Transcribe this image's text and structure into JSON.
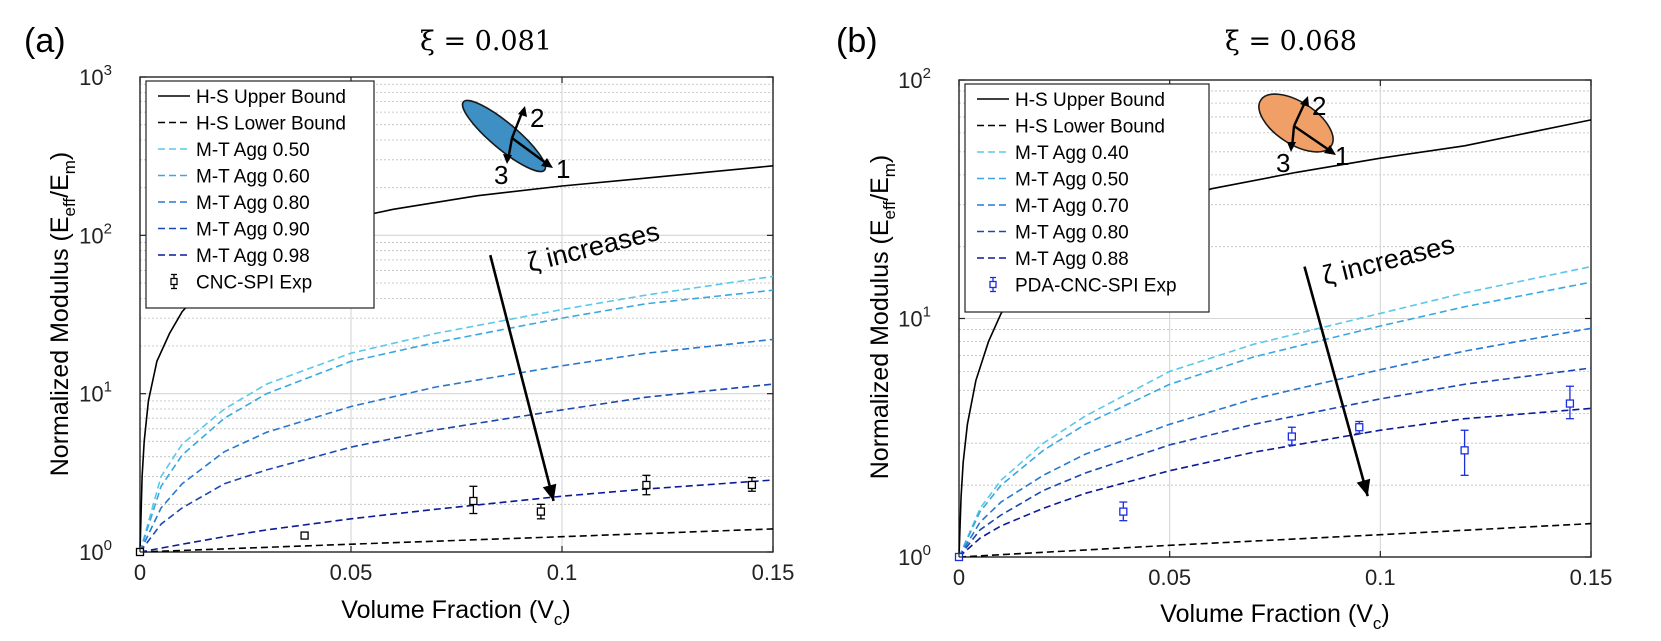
{
  "chart_data": [
    {
      "type": "line",
      "panel_label": "(a)",
      "title": "ξ = 0.081",
      "xlabel": "Volume Fraction (V",
      "xlabel_sub": "c",
      "xlabel_end": ")",
      "ylabel_main": "Normalized Modulus (E",
      "ylabel_sub1": "eff",
      "ylabel_slash": "/E",
      "ylabel_sub2": "m",
      "ylabel_end": ")",
      "xlim": [
        0,
        0.15
      ],
      "ylim": [
        1,
        1000
      ],
      "yscale": "log",
      "grid": true,
      "xticks": [
        0,
        0.05,
        0.1,
        0.15
      ],
      "xtick_labels": [
        "0",
        "0.05",
        "0.1",
        "0.15"
      ],
      "yticks": [
        {
          "value": 1,
          "base": "10",
          "exp": "0"
        },
        {
          "value": 10,
          "base": "10",
          "exp": "1"
        },
        {
          "value": 100,
          "base": "10",
          "exp": "2"
        },
        {
          "value": 1000,
          "base": "10",
          "exp": "3"
        }
      ],
      "legend": [
        {
          "label": "H-S Upper Bound",
          "style": "solid",
          "color": "#000000"
        },
        {
          "label": "H-S Lower Bound",
          "style": "dashed",
          "color": "#000000"
        },
        {
          "label": "M-T Agg 0.50",
          "style": "dashed",
          "color": "#5ac8e8"
        },
        {
          "label": "M-T Agg 0.60",
          "style": "dashed",
          "color": "#3aa8e0"
        },
        {
          "label": "M-T Agg 0.80",
          "style": "dashed",
          "color": "#2878d0"
        },
        {
          "label": "M-T Agg 0.90",
          "style": "dashed",
          "color": "#1a48b0"
        },
        {
          "label": "M-T Agg 0.98",
          "style": "dashed",
          "color": "#0a1a98"
        },
        {
          "label": "CNC-SPI Exp",
          "style": "errorbar",
          "color": "#000000"
        }
      ],
      "series": [
        {
          "name": "H-S Upper Bound",
          "style": "solid",
          "color": "#000000",
          "x": [
            0,
            0.0005,
            0.001,
            0.002,
            0.004,
            0.007,
            0.01,
            0.015,
            0.02,
            0.03,
            0.04,
            0.05,
            0.06,
            0.08,
            0.1,
            0.12,
            0.15
          ],
          "y": [
            1,
            3,
            5,
            9,
            16,
            24,
            33,
            46,
            60,
            85,
            107,
            128,
            146,
            178,
            205,
            230,
            275
          ]
        },
        {
          "name": "H-S Lower Bound",
          "style": "dashed",
          "color": "#000000",
          "x": [
            0,
            0.05,
            0.1,
            0.15
          ],
          "y": [
            1,
            1.12,
            1.25,
            1.4
          ]
        },
        {
          "name": "M-T Agg 0.50",
          "style": "dashed",
          "color": "#5ac8e8",
          "x": [
            0,
            0.005,
            0.01,
            0.02,
            0.03,
            0.05,
            0.07,
            0.1,
            0.12,
            0.15
          ],
          "y": [
            1,
            3,
            4.8,
            8,
            11.5,
            18,
            24,
            34,
            42,
            55
          ]
        },
        {
          "name": "M-T Agg 0.60",
          "style": "dashed",
          "color": "#3aa8e0",
          "x": [
            0,
            0.005,
            0.01,
            0.02,
            0.03,
            0.05,
            0.07,
            0.1,
            0.12,
            0.15
          ],
          "y": [
            1,
            2.6,
            4.1,
            7,
            10,
            16,
            21,
            30,
            37,
            45
          ]
        },
        {
          "name": "M-T Agg 0.80",
          "style": "dashed",
          "color": "#2878d0",
          "x": [
            0,
            0.005,
            0.01,
            0.02,
            0.03,
            0.05,
            0.07,
            0.1,
            0.12,
            0.15
          ],
          "y": [
            1,
            1.9,
            2.7,
            4.3,
            5.7,
            8.3,
            11,
            15,
            18,
            22
          ]
        },
        {
          "name": "M-T Agg 0.90",
          "style": "dashed",
          "color": "#1a48b0",
          "x": [
            0,
            0.005,
            0.01,
            0.02,
            0.03,
            0.05,
            0.07,
            0.1,
            0.12,
            0.15
          ],
          "y": [
            1,
            1.5,
            1.9,
            2.7,
            3.3,
            4.6,
            5.9,
            7.9,
            9.5,
            11.5
          ]
        },
        {
          "name": "M-T Agg 0.98",
          "style": "dashed",
          "color": "#0a1a98",
          "x": [
            0,
            0.01,
            0.02,
            0.03,
            0.05,
            0.07,
            0.1,
            0.12,
            0.15
          ],
          "y": [
            1,
            1.12,
            1.25,
            1.38,
            1.62,
            1.86,
            2.25,
            2.5,
            2.85
          ]
        }
      ],
      "experimental": {
        "name": "CNC-SPI Exp",
        "color": "#000000",
        "points": [
          {
            "x": 0,
            "y": 1.0,
            "lo": 0.98,
            "hi": 1.02
          },
          {
            "x": 0.039,
            "y": 1.27,
            "lo": 1.23,
            "hi": 1.31
          },
          {
            "x": 0.079,
            "y": 2.1,
            "lo": 1.75,
            "hi": 2.6
          },
          {
            "x": 0.095,
            "y": 1.8,
            "lo": 1.62,
            "hi": 2.0
          },
          {
            "x": 0.12,
            "y": 2.65,
            "lo": 2.3,
            "hi": 3.05
          },
          {
            "x": 0.145,
            "y": 2.65,
            "lo": 2.42,
            "hi": 2.95
          }
        ]
      },
      "annotation": {
        "text": "ζ increases",
        "arrow_from": {
          "x": 0.083,
          "y": 75
        },
        "arrow_to": {
          "x": 0.098,
          "y": 2.1
        }
      },
      "inset": {
        "color": "#3d8fc4",
        "labels": [
          "1",
          "2",
          "3"
        ]
      }
    },
    {
      "type": "line",
      "panel_label": "(b)",
      "title": "ξ = 0.068",
      "xlabel": "Volume Fraction (V",
      "xlabel_sub": "c",
      "xlabel_end": ")",
      "ylabel_main": "Normalized Modulus (E",
      "ylabel_sub1": "eff",
      "ylabel_slash": "/E",
      "ylabel_sub2": "m",
      "ylabel_end": ")",
      "xlim": [
        0,
        0.15
      ],
      "ylim": [
        1,
        100
      ],
      "yscale": "log",
      "grid": true,
      "xticks": [
        0,
        0.05,
        0.1,
        0.15
      ],
      "xtick_labels": [
        "0",
        "0.05",
        "0.1",
        "0.15"
      ],
      "yticks": [
        {
          "value": 1,
          "base": "10",
          "exp": "0"
        },
        {
          "value": 10,
          "base": "10",
          "exp": "1"
        },
        {
          "value": 100,
          "base": "10",
          "exp": "2"
        }
      ],
      "legend": [
        {
          "label": "H-S Upper Bound",
          "style": "solid",
          "color": "#000000"
        },
        {
          "label": "H-S Lower Bound",
          "style": "dashed",
          "color": "#000000"
        },
        {
          "label": "M-T Agg 0.40",
          "style": "dashed",
          "color": "#5ac8e8"
        },
        {
          "label": "M-T Agg 0.50",
          "style": "dashed",
          "color": "#3aa8e0"
        },
        {
          "label": "M-T Agg 0.70",
          "style": "dashed",
          "color": "#2878d0"
        },
        {
          "label": "M-T Agg 0.80",
          "style": "dashed",
          "color": "#1a48b0"
        },
        {
          "label": "M-T Agg 0.88",
          "style": "dashed",
          "color": "#0a1a98"
        },
        {
          "label": "PDA-CNC-SPI Exp",
          "style": "errorbar",
          "color": "#1a2ee0"
        }
      ],
      "series": [
        {
          "name": "H-S Upper Bound",
          "style": "solid",
          "color": "#000000",
          "x": [
            0,
            0.0005,
            0.001,
            0.002,
            0.004,
            0.007,
            0.01,
            0.015,
            0.02,
            0.03,
            0.04,
            0.05,
            0.06,
            0.08,
            0.1,
            0.12,
            0.15
          ],
          "y": [
            1,
            1.8,
            2.5,
            3.6,
            5.5,
            8,
            10.5,
            14,
            17,
            22.5,
            27,
            31,
            35,
            41,
            47,
            53,
            68
          ]
        },
        {
          "name": "H-S Lower Bound",
          "style": "dashed",
          "color": "#000000",
          "x": [
            0,
            0.05,
            0.1,
            0.15
          ],
          "y": [
            1,
            1.12,
            1.24,
            1.38
          ]
        },
        {
          "name": "M-T Agg 0.40",
          "style": "dashed",
          "color": "#5ac8e8",
          "x": [
            0,
            0.005,
            0.01,
            0.02,
            0.03,
            0.05,
            0.07,
            0.1,
            0.12,
            0.15
          ],
          "y": [
            1,
            1.6,
            2.1,
            3.0,
            3.9,
            6.0,
            7.8,
            10.5,
            12.8,
            16.5
          ]
        },
        {
          "name": "M-T Agg 0.50",
          "style": "dashed",
          "color": "#3aa8e0",
          "x": [
            0,
            0.005,
            0.01,
            0.02,
            0.03,
            0.05,
            0.07,
            0.1,
            0.12,
            0.15
          ],
          "y": [
            1,
            1.55,
            2.0,
            2.8,
            3.6,
            5.3,
            6.9,
            9.3,
            11.2,
            14.2
          ]
        },
        {
          "name": "M-T Agg 0.70",
          "style": "dashed",
          "color": "#2878d0",
          "x": [
            0,
            0.005,
            0.01,
            0.02,
            0.03,
            0.05,
            0.07,
            0.1,
            0.12,
            0.15
          ],
          "y": [
            1,
            1.4,
            1.7,
            2.2,
            2.7,
            3.6,
            4.6,
            6.1,
            7.3,
            9.1
          ]
        },
        {
          "name": "M-T Agg 0.80",
          "style": "dashed",
          "color": "#1a48b0",
          "x": [
            0,
            0.005,
            0.01,
            0.02,
            0.03,
            0.05,
            0.07,
            0.1,
            0.12,
            0.15
          ],
          "y": [
            1,
            1.3,
            1.5,
            1.9,
            2.25,
            2.95,
            3.6,
            4.6,
            5.3,
            6.2
          ]
        },
        {
          "name": "M-T Agg 0.88",
          "style": "dashed",
          "color": "#0a1a98",
          "x": [
            0,
            0.005,
            0.01,
            0.02,
            0.03,
            0.05,
            0.07,
            0.1,
            0.12,
            0.15
          ],
          "y": [
            1,
            1.2,
            1.35,
            1.6,
            1.85,
            2.3,
            2.75,
            3.4,
            3.8,
            4.2
          ]
        }
      ],
      "experimental": {
        "name": "PDA-CNC-SPI Exp",
        "color": "#1a2ee0",
        "points": [
          {
            "x": 0,
            "y": 1.0,
            "lo": 0.98,
            "hi": 1.02
          },
          {
            "x": 0.039,
            "y": 1.55,
            "lo": 1.42,
            "hi": 1.7
          },
          {
            "x": 0.079,
            "y": 3.2,
            "lo": 2.95,
            "hi": 3.5
          },
          {
            "x": 0.095,
            "y": 3.5,
            "lo": 3.3,
            "hi": 3.7
          },
          {
            "x": 0.12,
            "y": 2.8,
            "lo": 2.2,
            "hi": 3.4
          },
          {
            "x": 0.145,
            "y": 4.4,
            "lo": 3.8,
            "hi": 5.2
          }
        ]
      },
      "annotation": {
        "text": "ζ increases",
        "arrow_from": {
          "x": 0.082,
          "y": 16.5
        },
        "arrow_to": {
          "x": 0.097,
          "y": 1.8
        }
      },
      "inset": {
        "color": "#f0a066",
        "labels": [
          "1",
          "2",
          "3"
        ]
      }
    }
  ]
}
